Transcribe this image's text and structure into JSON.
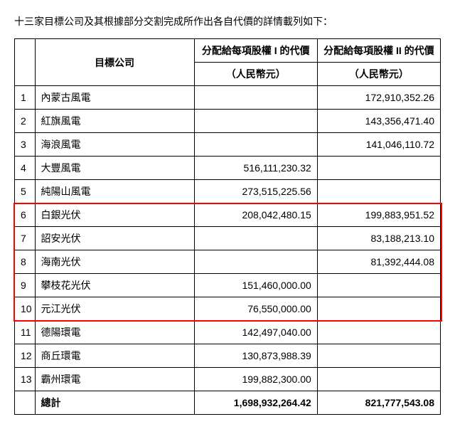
{
  "introText": "十三家目標公司及其根據部分交割完成所作出各自代價的詳情載列如下：",
  "headers": {
    "company": "目標公司",
    "col1": "分配給每項股權 I 的代價",
    "col2": "分配給每項股權 II 的代價",
    "unit": "（人民幣元）"
  },
  "rows": [
    {
      "idx": "1",
      "name": "內蒙古風電",
      "v1": "",
      "v2": "172,910,352.26"
    },
    {
      "idx": "2",
      "name": "紅旗風電",
      "v1": "",
      "v2": "143,356,471.40"
    },
    {
      "idx": "3",
      "name": "海浪風電",
      "v1": "",
      "v2": "141,046,110.72"
    },
    {
      "idx": "4",
      "name": "大豐風電",
      "v1": "516,111,230.32",
      "v2": ""
    },
    {
      "idx": "5",
      "name": "純陽山風電",
      "v1": "273,515,225.56",
      "v2": ""
    },
    {
      "idx": "6",
      "name": "白銀光伏",
      "v1": "208,042,480.15",
      "v2": "199,883,951.52"
    },
    {
      "idx": "7",
      "name": "詔安光伏",
      "v1": "",
      "v2": "83,188,213.10"
    },
    {
      "idx": "8",
      "name": "海南光伏",
      "v1": "",
      "v2": "81,392,444.08"
    },
    {
      "idx": "9",
      "name": "攀枝花光伏",
      "v1": "151,460,000.00",
      "v2": ""
    },
    {
      "idx": "10",
      "name": "元江光伏",
      "v1": "76,550,000.00",
      "v2": ""
    },
    {
      "idx": "11",
      "name": "德陽環電",
      "v1": "142,497,040.00",
      "v2": ""
    },
    {
      "idx": "12",
      "name": "商丘環電",
      "v1": "130,873,988.39",
      "v2": ""
    },
    {
      "idx": "13",
      "name": "霸州環電",
      "v1": "199,882,300.00",
      "v2": ""
    }
  ],
  "total": {
    "label": "總計",
    "v1": "1,698,932,264.42",
    "v2": "821,777,543.08"
  },
  "highlight": {
    "fromRow": 6,
    "toRow": 10,
    "color": "#ff0000"
  }
}
